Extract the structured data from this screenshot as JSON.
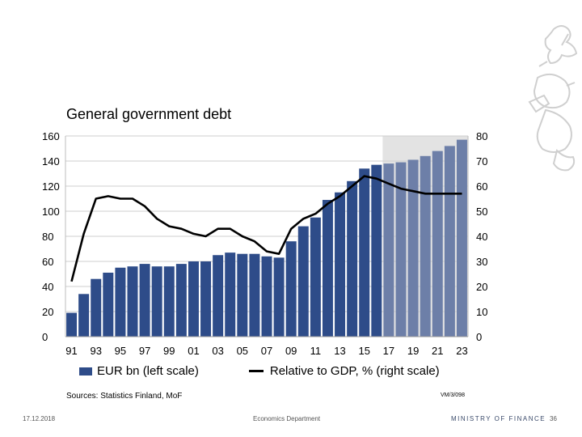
{
  "chart_data": {
    "type": "bar",
    "title": "General government debt",
    "categories": [
      "91",
      "92",
      "93",
      "94",
      "95",
      "96",
      "97",
      "98",
      "99",
      "00",
      "01",
      "02",
      "03",
      "04",
      "05",
      "06",
      "07",
      "08",
      "09",
      "10",
      "11",
      "12",
      "13",
      "14",
      "15",
      "16",
      "17",
      "18",
      "19",
      "20",
      "21",
      "22",
      "23"
    ],
    "x_tick_labels": [
      "91",
      "93",
      "95",
      "97",
      "99",
      "01",
      "03",
      "05",
      "07",
      "09",
      "11",
      "13",
      "15",
      "17",
      "19",
      "21",
      "23"
    ],
    "forecast_from": "17",
    "series": [
      {
        "name": "EUR bn (left scale)",
        "type": "bar",
        "axis": "left",
        "values": [
          19,
          34,
          46,
          51,
          55,
          56,
          58,
          56,
          56,
          58,
          60,
          60,
          65,
          67,
          66,
          66,
          64,
          63,
          76,
          88,
          95,
          109,
          115,
          124,
          134,
          137,
          138,
          139,
          141,
          144,
          148,
          152,
          157
        ]
      },
      {
        "name": "Relative to GDP, % (right scale)",
        "type": "line",
        "axis": "right",
        "values": [
          22,
          41,
          55,
          56,
          55,
          55,
          52,
          47,
          44,
          43,
          41,
          40,
          43,
          43,
          40,
          38,
          34,
          33,
          43,
          47,
          49,
          53,
          56,
          60,
          64,
          63,
          61,
          59,
          58,
          57,
          57,
          57,
          57
        ]
      }
    ],
    "left_axis": {
      "ylim": [
        0,
        160
      ],
      "ticks": [
        "0",
        "20",
        "40",
        "60",
        "80",
        "100",
        "120",
        "140",
        "160"
      ]
    },
    "right_axis": {
      "ylim": [
        0,
        80
      ],
      "ticks": [
        "0",
        "10",
        "20",
        "30",
        "40",
        "50",
        "60",
        "70",
        "80"
      ]
    },
    "legend": [
      {
        "label": "EUR bn (left scale)",
        "kind": "bar"
      },
      {
        "label": "Relative to GDP, % (right scale)",
        "kind": "line"
      }
    ],
    "colors": {
      "bars_actual": "#2e4c89",
      "bars_forecast": "#6d7fa8",
      "line": "#000000",
      "forecast_shade": "#e3e3e3"
    }
  },
  "sources": "Sources: Statistics Finland, MoF",
  "chart_code": "VM/3/098",
  "footer": {
    "date": "17.12.2018",
    "department": "Economics Department",
    "ministry": "MINISTRY OF FINANCE",
    "page": "36"
  }
}
